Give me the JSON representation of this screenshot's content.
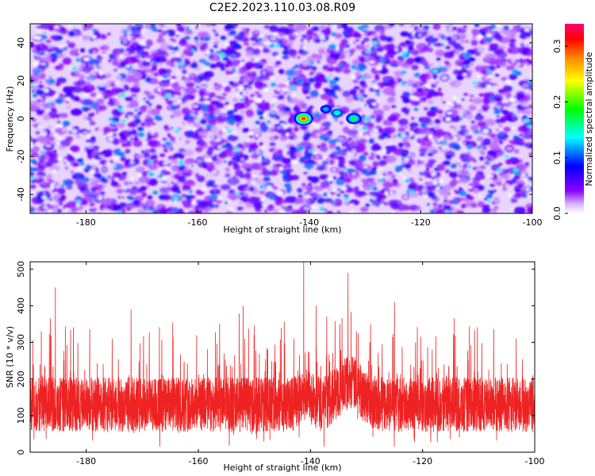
{
  "title": "C2E2.2023.110.03.08.R09",
  "chart_data": [
    {
      "type": "heatmap",
      "xlabel": "Height of straight line (km)",
      "ylabel": "Frequency (Hz)",
      "xlim": [
        -190,
        -100
      ],
      "ylim": [
        -50,
        50
      ],
      "x_ticks": [
        -180,
        -160,
        -140,
        -120,
        -100
      ],
      "y_ticks": [
        -40,
        -20,
        0,
        20,
        40
      ],
      "colorbar": {
        "label": "Normalized spectral amplitude",
        "range": [
          0.0,
          0.34
        ],
        "ticks": [
          0.0,
          0.1,
          0.2,
          0.3
        ],
        "colors": [
          "#ffffff",
          "#8a00ff",
          "#0000ff",
          "#00ffff",
          "#00ff00",
          "#ffff00",
          "#ff8800",
          "#ff0000",
          "#ff00aa"
        ]
      },
      "hotspots": [
        {
          "x": -141,
          "y": 0,
          "value": 0.3
        },
        {
          "x": -132,
          "y": 0,
          "value": 0.18
        },
        {
          "x": -135,
          "y": 3,
          "value": 0.15
        },
        {
          "x": -137,
          "y": 5,
          "value": 0.12
        }
      ]
    },
    {
      "type": "line",
      "xlabel": "Height of straight line (km)",
      "ylabel": "SNR (10 * v/v)",
      "xlim": [
        -190,
        -100
      ],
      "ylim": [
        0,
        520
      ],
      "x_ticks": [
        -180,
        -160,
        -140,
        -120,
        -100
      ],
      "y_ticks": [
        0,
        100,
        200,
        300,
        400,
        500
      ],
      "color": "#ee2222",
      "baseline": 130,
      "peaks": [
        {
          "x": -185.5,
          "y": 450
        },
        {
          "x": -141.2,
          "y": 520
        },
        {
          "x": -133.3,
          "y": 490
        },
        {
          "x": -139,
          "y": 400
        },
        {
          "x": -188,
          "y": 330
        },
        {
          "x": -172,
          "y": 390
        },
        {
          "x": -152,
          "y": 400
        },
        {
          "x": -125,
          "y": 410
        }
      ]
    }
  ]
}
